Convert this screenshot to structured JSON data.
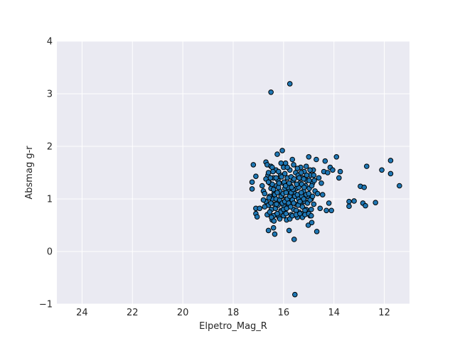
{
  "chart_data": {
    "type": "scatter",
    "title": "",
    "xlabel": "Elpetro_Mag_R",
    "ylabel": "Absmag g-r",
    "xlim": [
      25,
      11
    ],
    "ylim": [
      -1,
      4
    ],
    "x_inverted": true,
    "grid": true,
    "xticks": [
      24,
      22,
      20,
      18,
      16,
      14,
      12
    ],
    "yticks": [
      -1,
      0,
      1,
      2,
      3,
      4
    ],
    "marker_color": "#1f77b4",
    "marker_edge_color": "#000000",
    "background_color": "#eaeaf2",
    "grid_color": "#ffffff",
    "series": [
      {
        "points": [
          [
            16.5,
            3.03
          ],
          [
            15.75,
            3.19
          ],
          [
            15.55,
            -0.82
          ],
          [
            17.2,
            1.65
          ],
          [
            17.25,
            1.32
          ],
          [
            17.25,
            1.19
          ],
          [
            17.1,
            1.43
          ],
          [
            17.1,
            0.82
          ],
          [
            17.1,
            0.72
          ],
          [
            17.05,
            0.66
          ],
          [
            16.95,
            0.82
          ],
          [
            16.85,
            1.25
          ],
          [
            16.8,
            1.15
          ],
          [
            16.7,
            0.95
          ],
          [
            16.7,
            1.7
          ],
          [
            16.65,
            1.65
          ],
          [
            16.62,
            1.45
          ],
          [
            16.6,
            0.88
          ],
          [
            16.6,
            0.4
          ],
          [
            16.55,
            1.3
          ],
          [
            16.5,
            1.62
          ],
          [
            16.5,
            1.2
          ],
          [
            16.48,
            0.8
          ],
          [
            16.45,
            1.0
          ],
          [
            16.45,
            0.6
          ],
          [
            16.4,
            1.4
          ],
          [
            16.4,
            0.45
          ],
          [
            16.38,
            1.1
          ],
          [
            16.35,
            0.9
          ],
          [
            16.35,
            0.33
          ],
          [
            16.3,
            1.55
          ],
          [
            16.3,
            0.7
          ],
          [
            16.28,
            1.25
          ],
          [
            16.25,
            1.85
          ],
          [
            16.22,
            1.35
          ],
          [
            16.2,
            0.95
          ],
          [
            16.18,
            0.65
          ],
          [
            16.15,
            1.15
          ],
          [
            16.12,
            1.45
          ],
          [
            16.1,
            0.78
          ],
          [
            16.08,
            1.05
          ],
          [
            16.05,
            1.92
          ],
          [
            16.02,
            1.3
          ],
          [
            16.0,
            0.88
          ],
          [
            16.0,
            1.6
          ],
          [
            15.98,
            0.72
          ],
          [
            15.95,
            1.2
          ],
          [
            15.92,
            1.68
          ],
          [
            15.9,
            1.0
          ],
          [
            15.88,
            0.6
          ],
          [
            15.85,
            1.4
          ],
          [
            15.82,
            0.85
          ],
          [
            15.8,
            1.15
          ],
          [
            15.78,
            0.4
          ],
          [
            15.75,
            1.55
          ],
          [
            15.72,
            1.25
          ],
          [
            15.7,
            0.7
          ],
          [
            15.68,
            0.95
          ],
          [
            15.65,
            1.75
          ],
          [
            15.62,
            1.35
          ],
          [
            15.6,
            0.8
          ],
          [
            15.58,
            0.23
          ],
          [
            15.55,
            1.1
          ],
          [
            15.52,
            1.5
          ],
          [
            15.5,
            0.9
          ],
          [
            15.48,
            1.2
          ],
          [
            15.45,
            0.65
          ],
          [
            15.42,
            1.45
          ],
          [
            15.4,
            1.0
          ],
          [
            15.38,
            0.75
          ],
          [
            15.35,
            1.3
          ],
          [
            15.32,
            1.6
          ],
          [
            15.3,
            0.88
          ],
          [
            15.28,
            1.05
          ],
          [
            15.25,
            1.4
          ],
          [
            15.22,
            0.72
          ],
          [
            15.2,
            1.15
          ],
          [
            15.18,
            1.52
          ],
          [
            15.15,
            0.95
          ],
          [
            15.12,
            1.25
          ],
          [
            15.1,
            0.8
          ],
          [
            15.08,
            1.35
          ],
          [
            15.05,
            1.05
          ],
          [
            15.02,
            0.5
          ],
          [
            15.0,
            1.8
          ],
          [
            14.98,
            1.2
          ],
          [
            14.95,
            0.68
          ],
          [
            14.92,
            1.45
          ],
          [
            14.9,
            1.0
          ],
          [
            14.88,
            0.55
          ],
          [
            14.85,
            1.3
          ],
          [
            14.82,
            1.55
          ],
          [
            14.8,
            0.9
          ],
          [
            14.75,
            1.15
          ],
          [
            14.7,
            1.75
          ],
          [
            14.68,
            0.38
          ],
          [
            14.65,
            1.1
          ],
          [
            14.6,
            1.4
          ],
          [
            14.55,
            0.82
          ],
          [
            14.5,
            1.3
          ],
          [
            14.45,
            1.08
          ],
          [
            14.4,
            1.52
          ],
          [
            14.35,
            1.72
          ],
          [
            14.3,
            0.78
          ],
          [
            14.25,
            1.5
          ],
          [
            14.2,
            0.92
          ],
          [
            14.15,
            1.6
          ],
          [
            14.1,
            0.78
          ],
          [
            14.05,
            1.55
          ],
          [
            13.9,
            1.8
          ],
          [
            13.8,
            1.4
          ],
          [
            13.75,
            1.52
          ],
          [
            13.4,
            0.95
          ],
          [
            13.4,
            0.86
          ],
          [
            13.2,
            0.96
          ],
          [
            12.95,
            1.24
          ],
          [
            12.85,
            0.92
          ],
          [
            12.8,
            1.22
          ],
          [
            12.75,
            0.87
          ],
          [
            12.7,
            1.62
          ],
          [
            12.35,
            0.93
          ],
          [
            12.1,
            1.55
          ],
          [
            11.75,
            1.73
          ],
          [
            11.75,
            1.48
          ],
          [
            11.4,
            1.25
          ],
          [
            16.55,
            1.05
          ],
          [
            16.5,
            0.92
          ],
          [
            16.45,
            1.28
          ],
          [
            16.4,
            1.18
          ],
          [
            16.35,
            1.08
          ],
          [
            16.32,
            0.82
          ],
          [
            16.3,
            1.0
          ],
          [
            16.25,
            1.12
          ],
          [
            16.22,
            0.88
          ],
          [
            16.2,
            1.22
          ],
          [
            16.15,
            0.98
          ],
          [
            16.12,
            0.75
          ],
          [
            16.1,
            1.05
          ],
          [
            16.05,
            0.92
          ],
          [
            16.02,
            1.1
          ],
          [
            16.0,
            0.8
          ],
          [
            15.98,
            1.32
          ],
          [
            15.95,
            0.95
          ],
          [
            15.9,
            1.12
          ],
          [
            15.88,
            0.82
          ],
          [
            15.85,
            1.0
          ],
          [
            15.82,
            1.22
          ],
          [
            15.8,
            0.92
          ],
          [
            15.75,
            1.05
          ],
          [
            15.72,
            0.85
          ],
          [
            15.7,
            1.12
          ],
          [
            15.65,
            0.98
          ],
          [
            15.62,
            1.18
          ],
          [
            15.6,
            0.92
          ],
          [
            15.55,
            1.05
          ],
          [
            15.5,
            0.78
          ],
          [
            15.45,
            1.08
          ],
          [
            15.42,
            0.88
          ],
          [
            15.4,
            1.22
          ],
          [
            15.35,
            0.95
          ],
          [
            15.3,
            1.12
          ],
          [
            15.25,
            0.85
          ],
          [
            15.2,
            1.0
          ],
          [
            15.15,
            0.78
          ],
          [
            15.1,
            1.08
          ],
          [
            15.05,
            0.92
          ],
          [
            15.0,
            1.1
          ],
          [
            14.95,
            0.98
          ],
          [
            14.9,
            0.8
          ],
          [
            14.85,
            1.05
          ],
          [
            16.7,
            1.38
          ],
          [
            16.6,
            1.5
          ],
          [
            16.45,
            1.6
          ],
          [
            16.3,
            1.4
          ],
          [
            16.2,
            1.52
          ],
          [
            16.1,
            1.68
          ],
          [
            15.95,
            1.48
          ],
          [
            15.85,
            1.6
          ],
          [
            15.7,
            1.42
          ],
          [
            15.6,
            1.65
          ],
          [
            15.45,
            1.58
          ],
          [
            15.3,
            1.5
          ],
          [
            15.2,
            1.38
          ],
          [
            15.1,
            1.62
          ],
          [
            14.95,
            1.55
          ],
          [
            14.8,
            1.45
          ],
          [
            16.65,
            0.7
          ],
          [
            16.55,
            0.75
          ],
          [
            16.4,
            0.68
          ],
          [
            16.25,
            0.72
          ],
          [
            16.15,
            0.62
          ],
          [
            16.0,
            0.68
          ],
          [
            15.9,
            0.72
          ],
          [
            15.75,
            0.62
          ],
          [
            15.65,
            0.68
          ],
          [
            15.5,
            0.7
          ],
          [
            15.35,
            0.72
          ],
          [
            15.25,
            0.65
          ],
          [
            15.15,
            0.7
          ],
          [
            15.0,
            0.72
          ],
          [
            14.9,
            0.68
          ],
          [
            16.8,
            0.98
          ],
          [
            16.75,
            1.1
          ],
          [
            16.75,
            0.85
          ],
          [
            16.6,
            1.32
          ],
          [
            16.58,
            1.02
          ],
          [
            16.52,
            1.4
          ],
          [
            16.48,
            0.65
          ],
          [
            16.42,
            1.52
          ],
          [
            16.38,
            0.58
          ],
          [
            16.28,
            0.9
          ],
          [
            16.18,
            1.3
          ],
          [
            16.08,
            1.42
          ],
          [
            15.92,
            1.25
          ],
          [
            15.78,
            1.3
          ],
          [
            15.68,
            1.22
          ],
          [
            15.58,
            1.38
          ],
          [
            15.48,
            1.28
          ],
          [
            15.38,
            1.4
          ],
          [
            15.28,
            1.28
          ],
          [
            15.18,
            1.22
          ],
          [
            15.08,
            1.45
          ],
          [
            14.98,
            1.35
          ],
          [
            14.88,
            1.25
          ],
          [
            14.78,
            1.35
          ]
        ]
      }
    ]
  }
}
